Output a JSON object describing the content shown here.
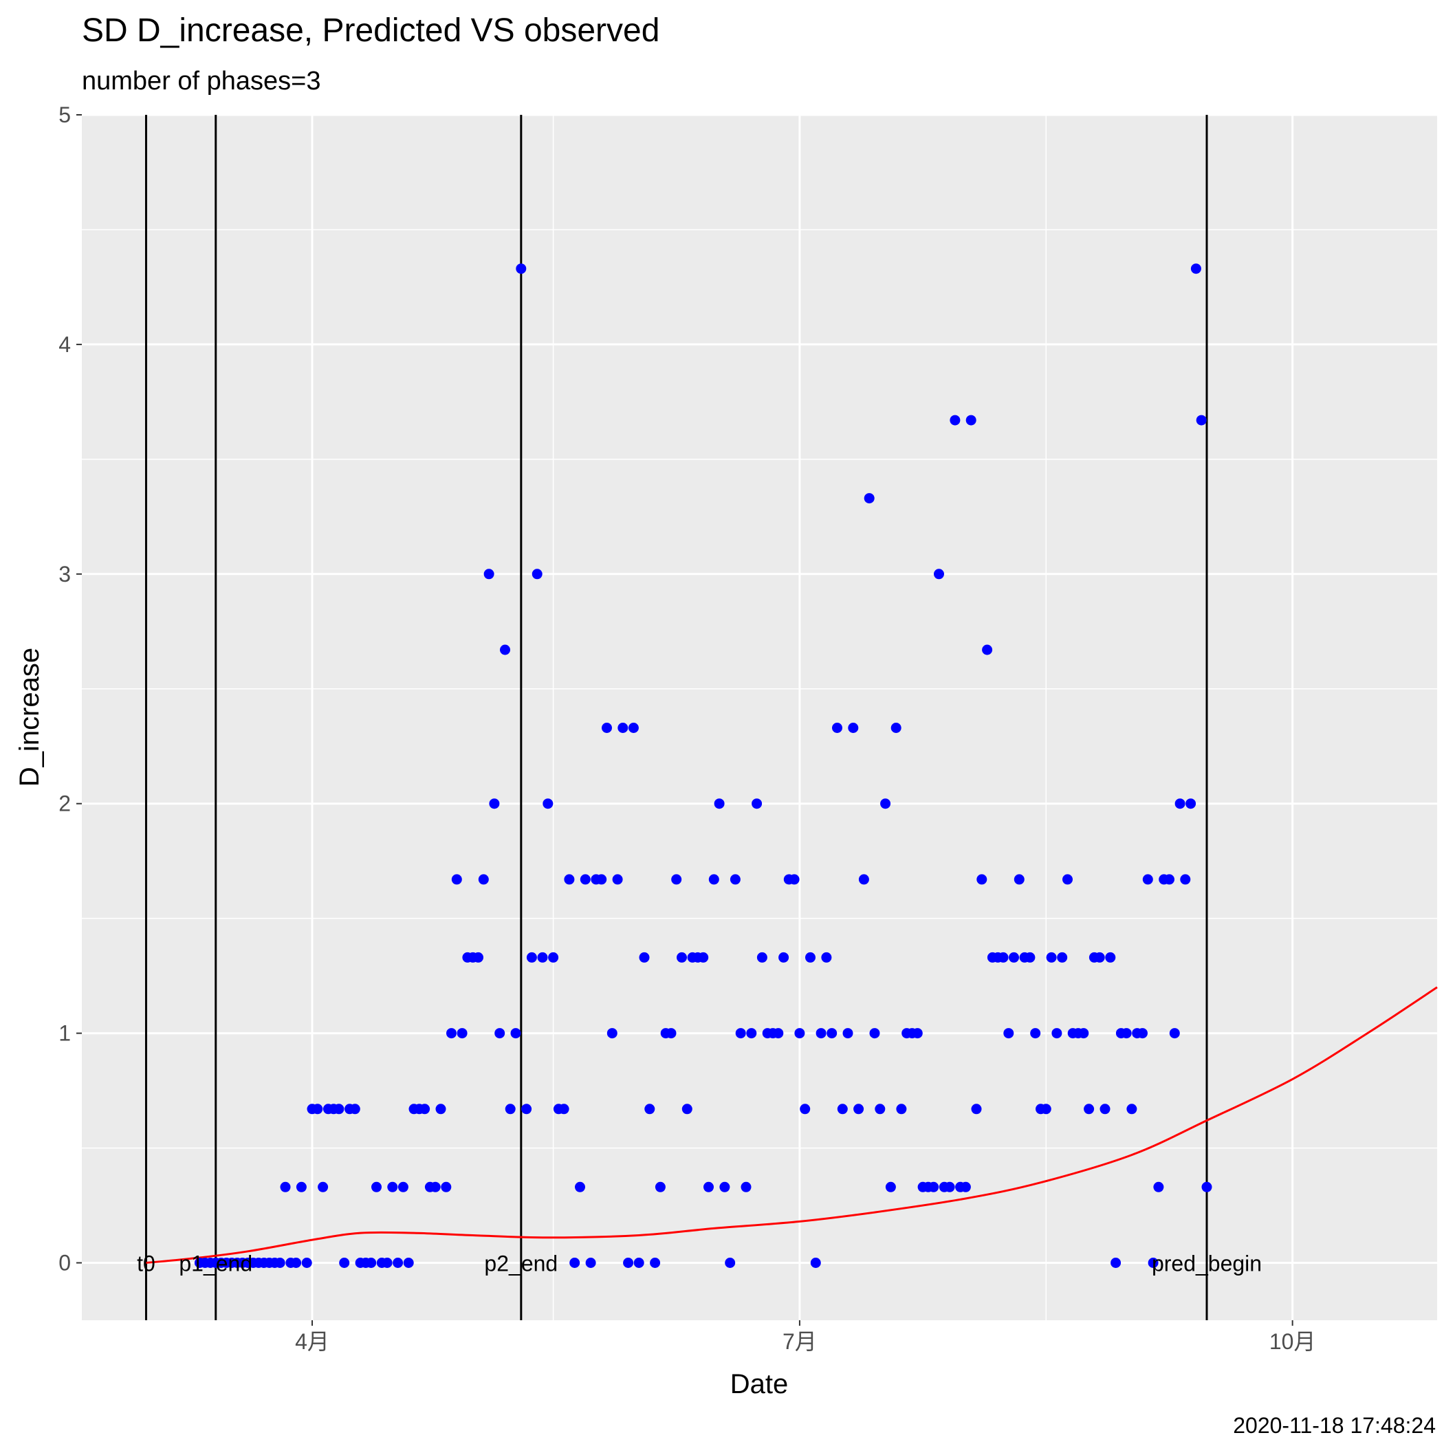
{
  "chart_data": {
    "type": "scatter",
    "title": "SD D_increase, Predicted VS observed",
    "subtitle": "number of phases=3",
    "xlabel": "Date",
    "ylabel": "D_increase",
    "ylim": [
      -0.25,
      5
    ],
    "y_ticks": [
      0,
      1,
      2,
      3,
      4,
      5
    ],
    "xlim": [
      "2020-02-18",
      "2020-10-28"
    ],
    "x_ticks": [
      {
        "date": "2020-04-01",
        "label": "4月"
      },
      {
        "date": "2020-07-01",
        "label": "7月"
      },
      {
        "date": "2020-10-01",
        "label": "10月"
      }
    ],
    "x_minor_ticks": [
      "2020-02-15",
      "2020-05-16",
      "2020-08-16"
    ],
    "grid": true,
    "timestamp": "2020-11-18 17:48:24",
    "colors": {
      "observed": "#0000ff",
      "predicted": "#ff0000",
      "vlines": "#000000",
      "panel": "#ebebeb",
      "grid": "#ffffff"
    },
    "vlines": [
      {
        "date": "2020-03-01",
        "label": "t0"
      },
      {
        "date": "2020-03-14",
        "label": "p1_end"
      },
      {
        "date": "2020-05-10",
        "label": "p2_end"
      },
      {
        "date": "2020-09-15",
        "label": "pred_begin"
      }
    ],
    "observed": {
      "x": [
        "2020-03-11",
        "2020-03-12",
        "2020-03-13",
        "2020-03-14",
        "2020-03-15",
        "2020-03-16",
        "2020-03-17",
        "2020-03-18",
        "2020-03-19",
        "2020-03-20",
        "2020-03-21",
        "2020-03-22",
        "2020-03-23",
        "2020-03-24",
        "2020-03-25",
        "2020-03-26",
        "2020-03-27",
        "2020-03-28",
        "2020-03-29",
        "2020-03-30",
        "2020-03-31",
        "2020-04-01",
        "2020-04-02",
        "2020-04-03",
        "2020-04-04",
        "2020-04-05",
        "2020-04-06",
        "2020-04-07",
        "2020-04-08",
        "2020-04-09",
        "2020-04-10",
        "2020-04-11",
        "2020-04-12",
        "2020-04-13",
        "2020-04-14",
        "2020-04-15",
        "2020-04-16",
        "2020-04-17",
        "2020-04-18",
        "2020-04-19",
        "2020-04-20",
        "2020-04-21",
        "2020-04-22",
        "2020-04-23",
        "2020-04-24",
        "2020-04-25",
        "2020-04-26",
        "2020-04-27",
        "2020-04-28",
        "2020-04-29",
        "2020-04-30",
        "2020-05-01",
        "2020-05-02",
        "2020-05-03",
        "2020-05-04",
        "2020-05-05",
        "2020-05-06",
        "2020-05-07",
        "2020-05-08",
        "2020-05-09",
        "2020-05-10",
        "2020-05-11",
        "2020-05-12",
        "2020-05-13",
        "2020-05-14",
        "2020-05-15",
        "2020-05-16",
        "2020-05-17",
        "2020-05-18",
        "2020-05-19",
        "2020-05-20",
        "2020-05-21",
        "2020-05-22",
        "2020-05-23",
        "2020-05-24",
        "2020-05-25",
        "2020-05-26",
        "2020-05-27",
        "2020-05-28",
        "2020-05-29",
        "2020-05-30",
        "2020-05-31",
        "2020-06-01",
        "2020-06-02",
        "2020-06-03",
        "2020-06-04",
        "2020-06-05",
        "2020-06-06",
        "2020-06-07",
        "2020-06-08",
        "2020-06-09",
        "2020-06-10",
        "2020-06-11",
        "2020-06-12",
        "2020-06-13",
        "2020-06-14",
        "2020-06-15",
        "2020-06-16",
        "2020-06-17",
        "2020-06-18",
        "2020-06-19",
        "2020-06-20",
        "2020-06-21",
        "2020-06-22",
        "2020-06-23",
        "2020-06-24",
        "2020-06-25",
        "2020-06-26",
        "2020-06-27",
        "2020-06-28",
        "2020-06-29",
        "2020-06-30",
        "2020-07-01",
        "2020-07-02",
        "2020-07-03",
        "2020-07-04",
        "2020-07-05",
        "2020-07-06",
        "2020-07-07",
        "2020-07-08",
        "2020-07-09",
        "2020-07-10",
        "2020-07-11",
        "2020-07-12",
        "2020-07-13",
        "2020-07-14",
        "2020-07-15",
        "2020-07-16",
        "2020-07-17",
        "2020-07-18",
        "2020-07-19",
        "2020-07-20",
        "2020-07-21",
        "2020-07-22",
        "2020-07-23",
        "2020-07-24",
        "2020-07-25",
        "2020-07-26",
        "2020-07-27",
        "2020-07-28",
        "2020-07-29",
        "2020-07-30",
        "2020-07-31",
        "2020-08-01",
        "2020-08-02",
        "2020-08-03",
        "2020-08-04",
        "2020-08-05",
        "2020-08-06",
        "2020-08-07",
        "2020-08-08",
        "2020-08-09",
        "2020-08-10",
        "2020-08-11",
        "2020-08-12",
        "2020-08-13",
        "2020-08-14",
        "2020-08-15",
        "2020-08-16",
        "2020-08-17",
        "2020-08-18",
        "2020-08-19",
        "2020-08-20",
        "2020-08-21",
        "2020-08-22",
        "2020-08-23",
        "2020-08-24",
        "2020-08-25",
        "2020-08-26",
        "2020-08-27",
        "2020-08-28",
        "2020-08-29",
        "2020-08-30",
        "2020-08-31",
        "2020-09-01",
        "2020-09-02",
        "2020-09-03",
        "2020-09-04",
        "2020-09-05",
        "2020-09-06",
        "2020-09-07",
        "2020-09-08",
        "2020-09-09",
        "2020-09-10",
        "2020-09-11",
        "2020-09-12",
        "2020-09-13",
        "2020-09-14",
        "2020-09-15"
      ],
      "y": [
        0,
        0,
        0,
        0,
        0,
        0,
        0,
        0,
        0,
        0,
        0,
        0,
        0,
        0,
        0,
        0,
        0.33,
        0,
        0,
        0.33,
        0,
        0.67,
        0.67,
        0.33,
        0.67,
        0.67,
        0.67,
        0,
        0.67,
        0.67,
        0,
        0,
        0,
        0.33,
        0,
        0,
        0.33,
        0,
        0.33,
        0,
        0.67,
        0.67,
        0.67,
        0.33,
        0.33,
        0.67,
        0.33,
        1,
        1.67,
        1,
        1.33,
        1.33,
        1.33,
        1.67,
        3,
        2,
        1,
        2.67,
        0.67,
        1,
        4.33,
        0.67,
        1.33,
        3,
        1.33,
        2,
        1.33,
        0.67,
        0.67,
        1.67,
        0,
        0.33,
        1.67,
        0,
        1.67,
        1.67,
        2.33,
        1,
        1.67,
        2.33,
        0,
        2.33,
        0,
        1.33,
        0.67,
        0,
        0.33,
        1,
        1,
        1.67,
        1.33,
        0.67,
        1.33,
        1.33,
        1.33,
        0.33,
        1.67,
        2,
        0.33,
        0,
        1.67,
        1,
        0.33,
        1,
        2,
        1.33,
        1,
        1,
        1,
        1.33,
        1.67,
        1.67,
        1,
        0.67,
        1.33,
        0,
        1,
        1.33,
        1,
        2.33,
        0.67,
        1,
        2.33,
        0.67,
        1.67,
        3.33,
        1,
        0.67,
        2,
        0.33,
        2.33,
        0.67,
        1,
        1,
        1,
        0.33,
        0.33,
        0.33,
        3,
        0.33,
        0.33,
        3.67,
        0.33,
        0.33,
        3.67,
        0.67,
        1.67,
        2.67,
        1.33,
        1.33,
        1.33,
        1,
        1.33,
        1.67,
        1.33,
        1.33,
        1,
        0.67,
        0.67,
        1.33,
        1,
        1.33,
        1.67,
        1,
        1,
        1,
        0.67,
        1.33,
        1.33,
        0.67,
        1.33,
        0,
        1,
        1,
        0.67,
        1,
        1,
        1.67,
        0,
        0.33,
        1.67,
        1.67,
        1,
        2,
        1.67,
        2,
        4.33,
        3.67,
        0.33
      ]
    },
    "predicted": {
      "x": [
        "2020-03-01",
        "2020-03-10",
        "2020-03-20",
        "2020-04-01",
        "2020-04-10",
        "2020-04-20",
        "2020-05-01",
        "2020-05-15",
        "2020-06-01",
        "2020-06-15",
        "2020-07-01",
        "2020-07-15",
        "2020-08-01",
        "2020-08-15",
        "2020-09-01",
        "2020-09-15",
        "2020-10-01",
        "2020-10-15",
        "2020-10-28"
      ],
      "y": [
        0,
        0.02,
        0.05,
        0.1,
        0.13,
        0.13,
        0.12,
        0.11,
        0.12,
        0.15,
        0.18,
        0.22,
        0.28,
        0.35,
        0.47,
        0.62,
        0.8,
        1.0,
        1.2
      ]
    }
  }
}
